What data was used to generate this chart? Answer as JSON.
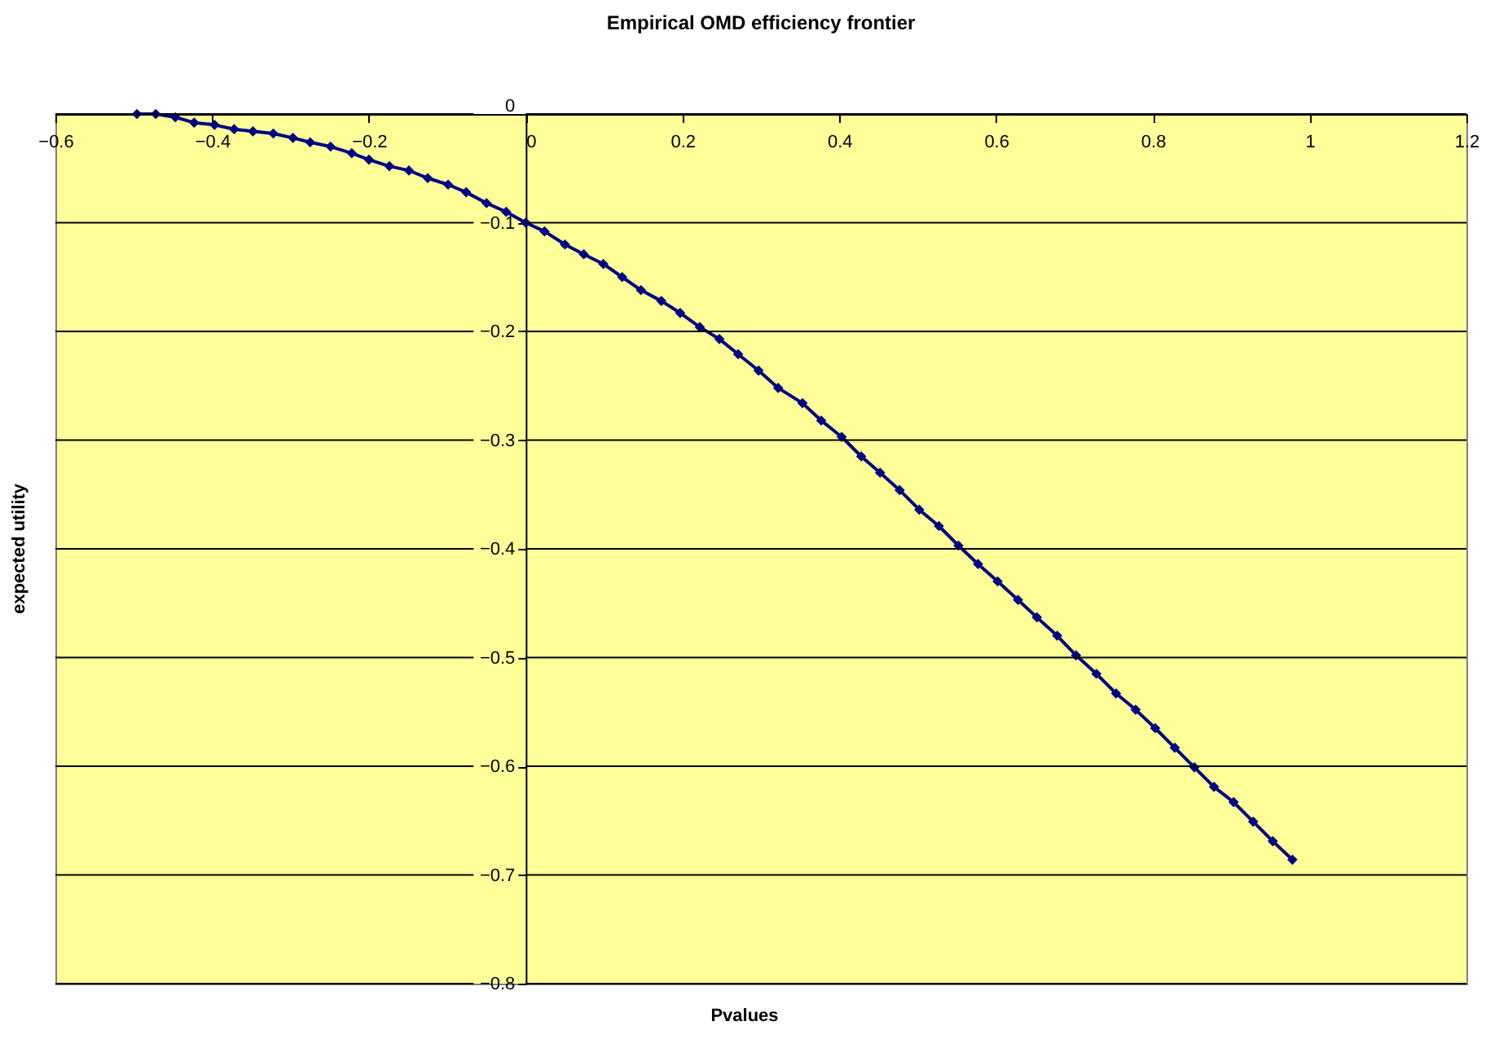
{
  "chart_data": {
    "type": "line",
    "title": "Empirical OMD efficiency frontier",
    "xlabel": "Pvalues",
    "ylabel": "expected utility",
    "x": [
      -0.496,
      -0.472,
      -0.447,
      -0.423,
      -0.397,
      -0.372,
      -0.348,
      -0.322,
      -0.297,
      -0.275,
      -0.249,
      -0.222,
      -0.2,
      -0.174,
      -0.149,
      -0.125,
      -0.099,
      -0.076,
      -0.05,
      -0.025,
      0,
      0.024,
      0.05,
      0.074,
      0.099,
      0.123,
      0.147,
      0.173,
      0.197,
      0.222,
      0.247,
      0.271,
      0.297,
      0.322,
      0.353,
      0.377,
      0.403,
      0.428,
      0.452,
      0.477,
      0.502,
      0.527,
      0.552,
      0.577,
      0.602,
      0.628,
      0.652,
      0.678,
      0.702,
      0.728,
      0.753,
      0.778,
      0.803,
      0.828,
      0.853,
      0.878,
      0.903,
      0.928,
      0.953,
      0.978
    ],
    "series": [
      {
        "color": "#000080",
        "values": [
          0,
          0,
          -0.003,
          -0.008,
          -0.01,
          -0.014,
          -0.016,
          -0.018,
          -0.022,
          -0.026,
          -0.03,
          -0.036,
          -0.042,
          -0.048,
          -0.052,
          -0.059,
          -0.065,
          -0.072,
          -0.082,
          -0.09,
          -0.1,
          -0.108,
          -0.12,
          -0.129,
          -0.138,
          -0.15,
          -0.162,
          -0.172,
          -0.183,
          -0.196,
          -0.207,
          -0.221,
          -0.236,
          -0.252,
          -0.266,
          -0.282,
          -0.297,
          -0.315,
          -0.33,
          -0.346,
          -0.364,
          -0.379,
          -0.397,
          -0.414,
          -0.43,
          -0.447,
          -0.463,
          -0.48,
          -0.498,
          -0.515,
          -0.533,
          -0.548,
          -0.565,
          -0.583,
          -0.601,
          -0.619,
          -0.633,
          -0.651,
          -0.669,
          -0.686
        ]
      }
    ],
    "xlim": [
      -0.6,
      1.2
    ],
    "xticks": [
      -0.6,
      -0.4,
      -0.2,
      0,
      0.2,
      0.4,
      0.6,
      0.8,
      1,
      1.2
    ],
    "ylim": [
      -0.8,
      0
    ],
    "yticks": [
      -0.8,
      -0.7,
      -0.6,
      -0.5,
      -0.4,
      -0.3,
      -0.2,
      -0.1,
      0
    ],
    "grid": "y",
    "marker": "diamond",
    "line_style": "solid"
  }
}
